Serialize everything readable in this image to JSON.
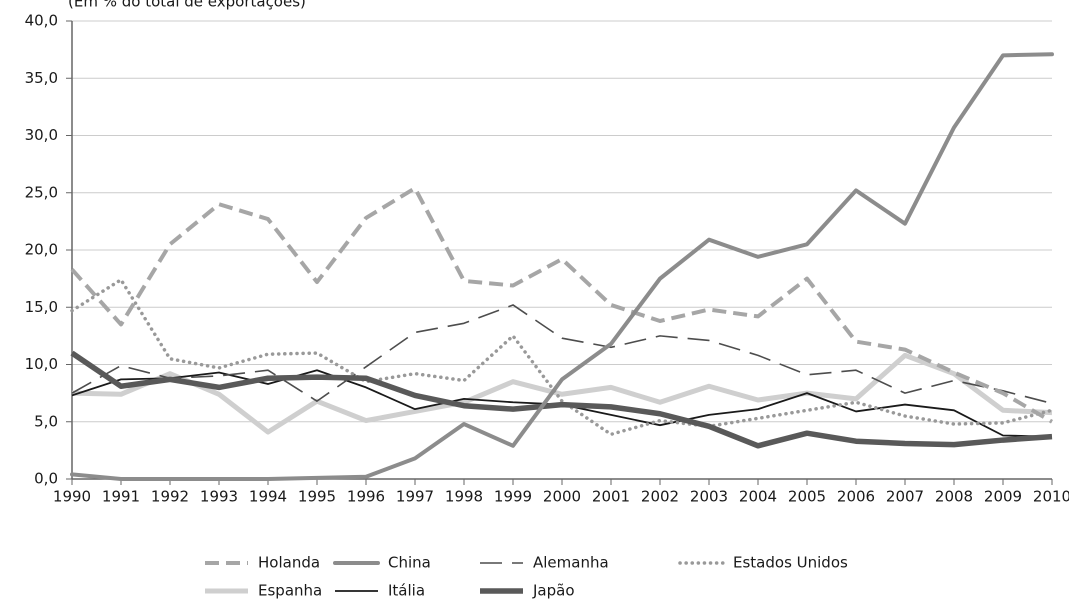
{
  "chart_data": {
    "type": "line",
    "subtitle": "(Em % do total de exportações)",
    "categories": [
      "1990",
      "1991",
      "1992",
      "1993",
      "1994",
      "1995",
      "1996",
      "1997",
      "1998",
      "1999",
      "2000",
      "2001",
      "2002",
      "2003",
      "2004",
      "2005",
      "2006",
      "2007",
      "2008",
      "2009",
      "2010"
    ],
    "ylim": [
      0,
      40
    ],
    "yticks": [
      {
        "value": 0,
        "label": "0,0"
      },
      {
        "value": 5,
        "label": "5,0"
      },
      {
        "value": 10,
        "label": "10,0"
      },
      {
        "value": 15,
        "label": "15,0"
      },
      {
        "value": 20,
        "label": "20,0"
      },
      {
        "value": 25,
        "label": "25,0"
      },
      {
        "value": 30,
        "label": "30,0"
      },
      {
        "value": 35,
        "label": "35,0"
      },
      {
        "value": 40,
        "label": "40,0"
      }
    ],
    "grid": true,
    "series": [
      {
        "name": "Holanda",
        "color": "#a6a6a6",
        "values": [
          18.3,
          13.5,
          20.5,
          24.0,
          22.7,
          17.2,
          22.8,
          25.4,
          17.3,
          16.9,
          19.2,
          15.2,
          13.8,
          14.8,
          14.2,
          17.5,
          12.0,
          11.3,
          9.3,
          7.5,
          5.0
        ]
      },
      {
        "name": "China",
        "color": "#8c8c8c",
        "values": [
          0.4,
          0.0,
          0.0,
          0.0,
          0.0,
          0.1,
          0.2,
          1.8,
          4.8,
          2.9,
          8.7,
          11.8,
          17.5,
          20.9,
          19.4,
          20.5,
          25.2,
          22.3,
          30.7,
          37.0,
          37.1
        ]
      },
      {
        "name": "Alemanha",
        "color": "#4d4d4d",
        "values": [
          7.5,
          9.9,
          8.8,
          9.0,
          9.5,
          6.8,
          9.8,
          12.8,
          13.6,
          15.2,
          12.3,
          11.5,
          12.5,
          12.1,
          10.8,
          9.1,
          9.5,
          7.5,
          8.6,
          7.7,
          6.6
        ]
      },
      {
        "name": "Estados Unidos",
        "color": "#999999",
        "values": [
          14.7,
          17.4,
          10.5,
          9.7,
          10.9,
          11.0,
          8.5,
          9.2,
          8.6,
          12.5,
          6.8,
          3.9,
          5.1,
          4.6,
          5.3,
          6.0,
          6.7,
          5.5,
          4.8,
          4.9,
          6.0
        ]
      },
      {
        "name": "Espanha",
        "color": "#cfcfcf",
        "values": [
          7.5,
          7.4,
          9.2,
          7.4,
          4.1,
          6.8,
          5.1,
          5.9,
          6.7,
          8.5,
          7.4,
          8.0,
          6.7,
          8.1,
          6.9,
          7.5,
          7.0,
          10.8,
          9.2,
          6.0,
          5.8
        ]
      },
      {
        "name": "Itália",
        "color": "#1a1a1a",
        "values": [
          7.3,
          8.7,
          8.8,
          9.3,
          8.3,
          9.5,
          8.0,
          6.1,
          7.0,
          6.7,
          6.5,
          5.6,
          4.7,
          5.6,
          6.1,
          7.5,
          5.9,
          6.5,
          6.0,
          3.8,
          3.7
        ]
      },
      {
        "name": "Japão",
        "color": "#595959",
        "values": [
          11.0,
          8.1,
          8.7,
          8.0,
          8.8,
          8.9,
          8.8,
          7.3,
          6.4,
          6.1,
          6.5,
          6.3,
          5.7,
          4.6,
          2.9,
          4.0,
          3.3,
          3.1,
          3.0,
          3.4,
          3.7
        ]
      }
    ]
  }
}
